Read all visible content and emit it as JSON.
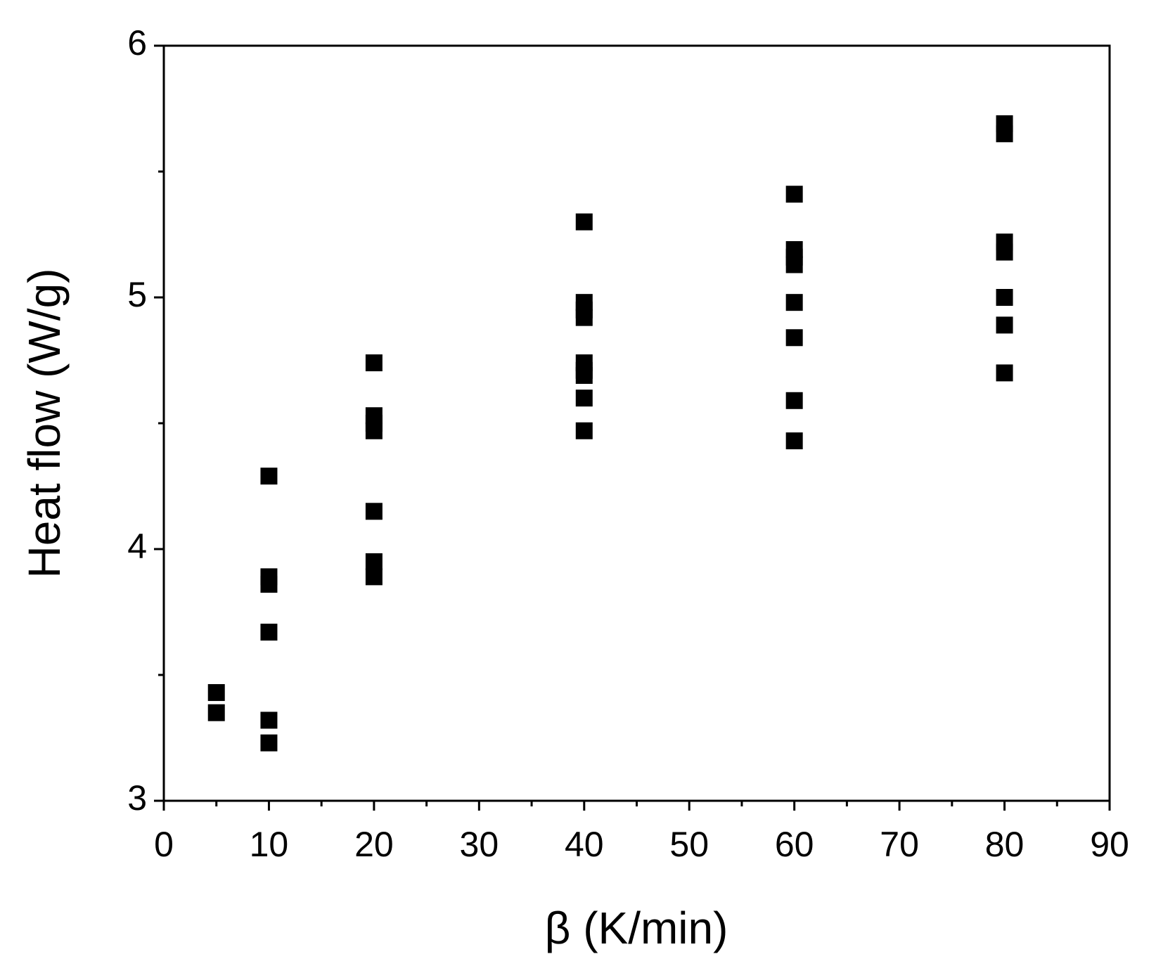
{
  "chart_data": {
    "type": "scatter",
    "x_label": "β (K/min)",
    "y_label": "Heat flow (W/g)",
    "xlim": [
      0,
      90
    ],
    "xticks": [
      0,
      10,
      20,
      30,
      40,
      50,
      60,
      70,
      80,
      90
    ],
    "ylim": [
      3,
      6
    ],
    "yticks": [
      3,
      4,
      5,
      6
    ],
    "series": [
      {
        "color": "#000000",
        "x": [
          5,
          5,
          10,
          10,
          10,
          10,
          10,
          10,
          20,
          20,
          20,
          20,
          20,
          20,
          20,
          40,
          40,
          40,
          40,
          40,
          40,
          40,
          40,
          40,
          60,
          60,
          60,
          60,
          60,
          60,
          60,
          60,
          80,
          80,
          80,
          80,
          80,
          80,
          80
        ],
        "values": [
          3.43,
          3.35,
          4.29,
          3.89,
          3.86,
          3.67,
          3.32,
          3.23,
          4.74,
          4.53,
          4.5,
          4.47,
          4.15,
          3.95,
          3.89,
          5.3,
          4.98,
          4.95,
          4.92,
          4.74,
          4.71,
          4.69,
          4.6,
          4.47,
          5.41,
          5.19,
          5.16,
          5.13,
          4.98,
          4.84,
          4.59,
          4.43,
          5.69,
          5.65,
          5.22,
          5.18,
          5.0,
          4.89,
          4.7
        ]
      }
    ]
  }
}
